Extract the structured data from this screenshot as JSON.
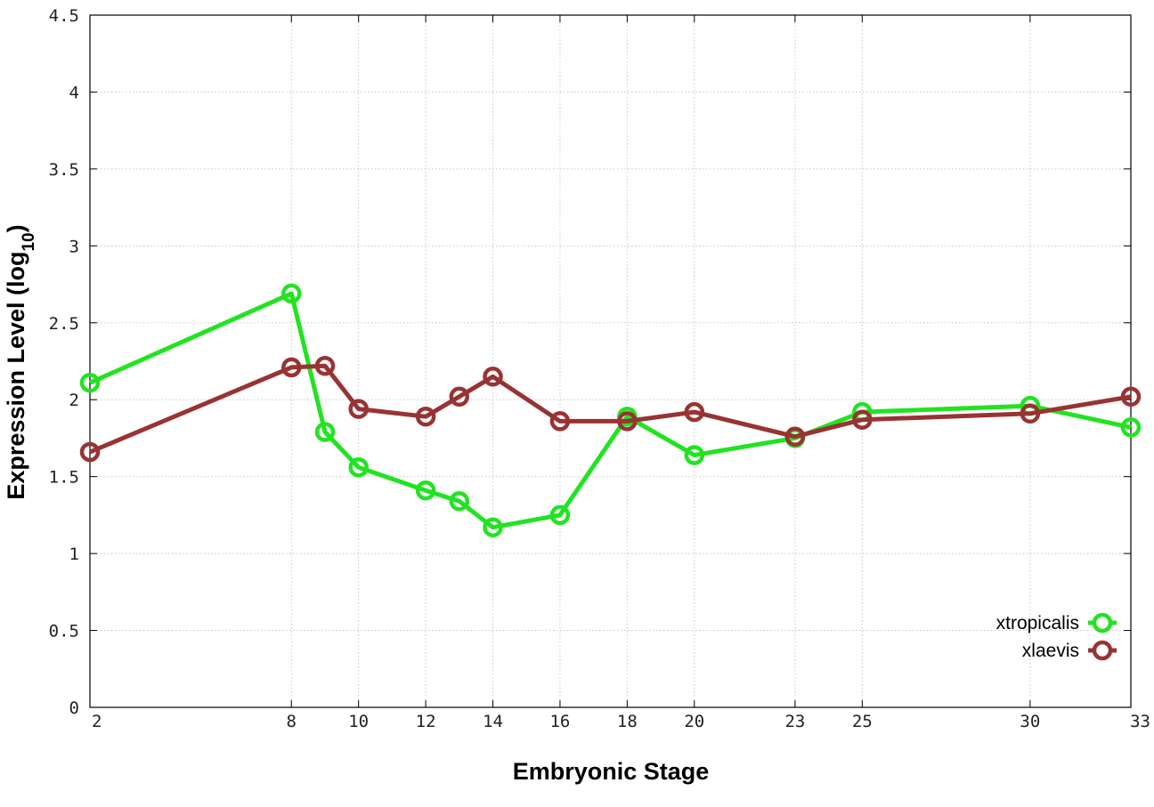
{
  "chart_data": {
    "type": "line",
    "xlabel": "Embryonic Stage",
    "ylabel_main": "Expression Level (log",
    "ylabel_sub": "10",
    "ylabel_close": ")",
    "xlim": [
      2,
      33
    ],
    "ylim": [
      0,
      4.5
    ],
    "x_ticks": [
      2,
      8,
      10,
      12,
      14,
      16,
      18,
      20,
      23,
      25,
      30,
      33
    ],
    "y_ticks": [
      0,
      0.5,
      1,
      1.5,
      2,
      2.5,
      3,
      3.5,
      4,
      4.5
    ],
    "y_tick_labels": [
      "0",
      "0.5",
      "1",
      "1.5",
      "2",
      "2.5",
      "3",
      "3.5",
      "4",
      "4.5"
    ],
    "grid": true,
    "legend_position": "bottom-right",
    "series": [
      {
        "name": "xtropicalis",
        "color": "#22e322",
        "x": [
          2,
          8,
          9,
          10,
          12,
          13,
          14,
          16,
          18,
          20,
          23,
          25,
          30,
          33
        ],
        "y": [
          2.11,
          2.69,
          1.79,
          1.56,
          1.41,
          1.34,
          1.17,
          1.25,
          1.89,
          1.64,
          1.75,
          1.92,
          1.96,
          1.82
        ]
      },
      {
        "name": "xlaevis",
        "color": "#993333",
        "x": [
          2,
          8,
          9,
          10,
          12,
          13,
          14,
          16,
          18,
          20,
          23,
          25,
          30,
          33
        ],
        "y": [
          1.66,
          2.21,
          2.22,
          1.94,
          1.89,
          2.02,
          2.15,
          1.86,
          1.86,
          1.92,
          1.76,
          1.87,
          1.91,
          2.02
        ]
      }
    ]
  }
}
